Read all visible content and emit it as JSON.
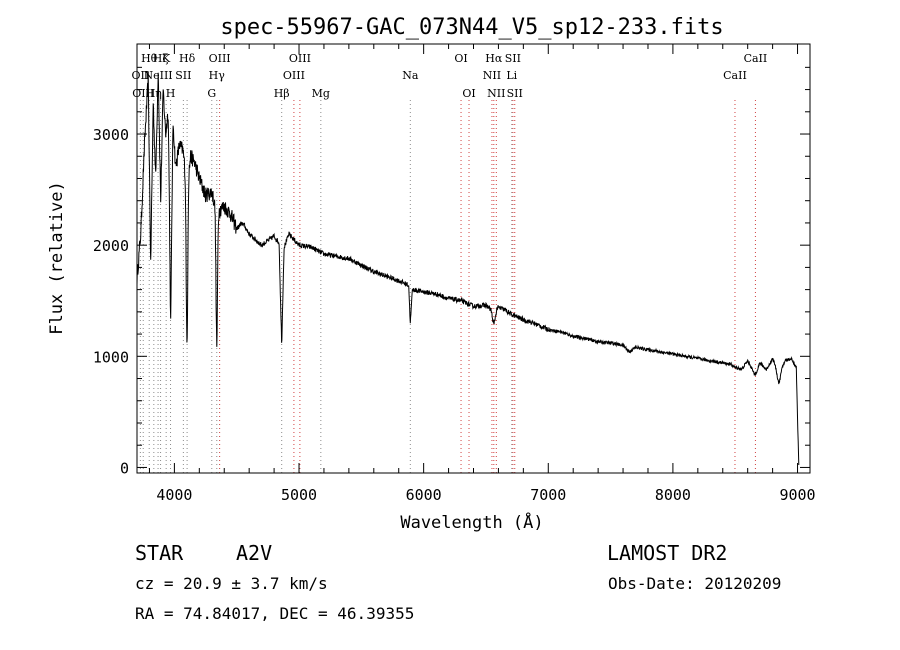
{
  "chart_data": {
    "type": "line",
    "title": "spec-55967-GAC_073N44_V5_sp12-233.fits",
    "xlabel": "Wavelength (Å)",
    "ylabel": "Flux (relative)",
    "xlim": [
      3700,
      9100
    ],
    "ylim": [
      -50,
      3810
    ],
    "xticks": [
      "4000",
      "5000",
      "6000",
      "7000",
      "8000",
      "9000"
    ],
    "yticks": [
      "0",
      "1000",
      "2000",
      "3000"
    ],
    "grid": false,
    "series": [
      {
        "x": [
          3700,
          3730,
          3760,
          3790,
          3810,
          3830,
          3850,
          3870,
          3890,
          3910,
          3930,
          3950,
          3970,
          3990,
          4010,
          4040,
          4070,
          4100,
          4130,
          4160,
          4200,
          4250,
          4300,
          4340,
          4400,
          4450,
          4500,
          4550,
          4600,
          4700,
          4800,
          4840,
          4861,
          4880,
          4920,
          4960,
          5000,
          5100,
          5200,
          5300,
          5400,
          5500,
          5600,
          5700,
          5800,
          5880,
          5893,
          5910,
          6000,
          6100,
          6200,
          6300,
          6400,
          6500,
          6540,
          6563,
          6590,
          6650,
          6700,
          6800,
          6900,
          7000,
          7100,
          7200,
          7300,
          7400,
          7500,
          7600,
          7650,
          7700,
          7800,
          7900,
          8000,
          8100,
          8200,
          8300,
          8400,
          8500,
          8550,
          8600,
          8650,
          8700,
          8750,
          8800,
          8850,
          8900,
          8950,
          8990,
          9010
        ],
        "y": [
          1700,
          2100,
          2900,
          3500,
          1800,
          3300,
          2600,
          3600,
          2400,
          3400,
          3000,
          3200,
          1700,
          3100,
          2700,
          2900,
          2850,
          2500,
          2800,
          2750,
          2600,
          2450,
          2480,
          2300,
          2350,
          2280,
          2150,
          2200,
          2100,
          2000,
          2080,
          2020,
          1100,
          1980,
          2100,
          2050,
          2000,
          1980,
          1920,
          1900,
          1880,
          1820,
          1760,
          1720,
          1680,
          1640,
          1300,
          1600,
          1580,
          1560,
          1520,
          1500,
          1450,
          1460,
          1420,
          1280,
          1440,
          1420,
          1380,
          1330,
          1290,
          1240,
          1220,
          1180,
          1160,
          1130,
          1120,
          1100,
          1040,
          1080,
          1060,
          1040,
          1020,
          1000,
          980,
          960,
          940,
          920,
          880,
          960,
          860,
          940,
          880,
          980,
          840,
          960,
          980,
          900,
          20
        ]
      }
    ],
    "absorption_dips": [
      {
        "x": 3970,
        "y": 1300
      },
      {
        "x": 4101,
        "y": 1100
      },
      {
        "x": 4340,
        "y": 1100
      },
      {
        "x": 4861,
        "y": 1100
      },
      {
        "x": 5893,
        "y": 1300
      },
      {
        "x": 6563,
        "y": 1280
      },
      {
        "x": 8500,
        "y": 900
      },
      {
        "x": 8665,
        "y": 850
      },
      {
        "x": 8850,
        "y": 760
      }
    ],
    "line_markers": [
      {
        "x": 3727,
        "label": "OII",
        "row": 2,
        "style": "gray"
      },
      {
        "x": 3750,
        "label": "OIII",
        "row": 3,
        "style": "gray"
      },
      {
        "x": 3798,
        "label": "Hθ",
        "row": 1,
        "style": "gray"
      },
      {
        "x": 3835,
        "label": "Hη",
        "row": 3,
        "style": "gray"
      },
      {
        "x": 3869,
        "label": "NeIII",
        "row": 2,
        "style": "gray"
      },
      {
        "x": 3889,
        "label": "Hζ",
        "row": 1,
        "style": "gray"
      },
      {
        "x": 3934,
        "label": "K",
        "row": 1,
        "style": "gray"
      },
      {
        "x": 3969,
        "label": "H",
        "row": 3,
        "style": "gray"
      },
      {
        "x": 4072,
        "label": "SII",
        "row": 2,
        "style": "gray"
      },
      {
        "x": 4102,
        "label": "Hδ",
        "row": 1,
        "style": "gray"
      },
      {
        "x": 4300,
        "label": "G",
        "row": 3,
        "style": "gray"
      },
      {
        "x": 4340,
        "label": "Hγ",
        "row": 2,
        "style": "gray"
      },
      {
        "x": 4363,
        "label": "OIII",
        "row": 1,
        "style": "red"
      },
      {
        "x": 4861,
        "label": "Hβ",
        "row": 3,
        "style": "gray"
      },
      {
        "x": 4959,
        "label": "OIII",
        "row": 2,
        "style": "red"
      },
      {
        "x": 5007,
        "label": "OIII",
        "row": 1,
        "style": "red"
      },
      {
        "x": 5175,
        "label": "Mg",
        "row": 3,
        "style": "gray"
      },
      {
        "x": 5893,
        "label": "Na",
        "row": 2,
        "style": "gray"
      },
      {
        "x": 6300,
        "label": "OI",
        "row": 1,
        "style": "red"
      },
      {
        "x": 6364,
        "label": "OI",
        "row": 3,
        "style": "red"
      },
      {
        "x": 6548,
        "label": "NII",
        "row": 2,
        "style": "red"
      },
      {
        "x": 6563,
        "label": "Hα",
        "row": 1,
        "style": "red"
      },
      {
        "x": 6583,
        "label": "NII",
        "row": 3,
        "style": "red"
      },
      {
        "x": 6707,
        "label": "Li",
        "row": 2,
        "style": "gray"
      },
      {
        "x": 6716,
        "label": "SII",
        "row": 1,
        "style": "red"
      },
      {
        "x": 6731,
        "label": "SII",
        "row": 3,
        "style": "red"
      },
      {
        "x": 8498,
        "label": "CaII",
        "row": 2,
        "style": "red"
      },
      {
        "x": 8662,
        "label": "CaII",
        "row": 1,
        "style": "red"
      }
    ]
  },
  "info": {
    "object_class": "STAR",
    "subclass": "A2V",
    "survey": "LAMOST DR2",
    "cz": "cz = 20.9 ± 3.7 km/s",
    "obs_date": "Obs-Date: 20120209",
    "coords": "RA =  74.84017, DEC =  46.39355"
  },
  "colors": {
    "marker_red": "#d04040",
    "marker_gray": "#8c8c8c",
    "spectrum": "#000000"
  }
}
